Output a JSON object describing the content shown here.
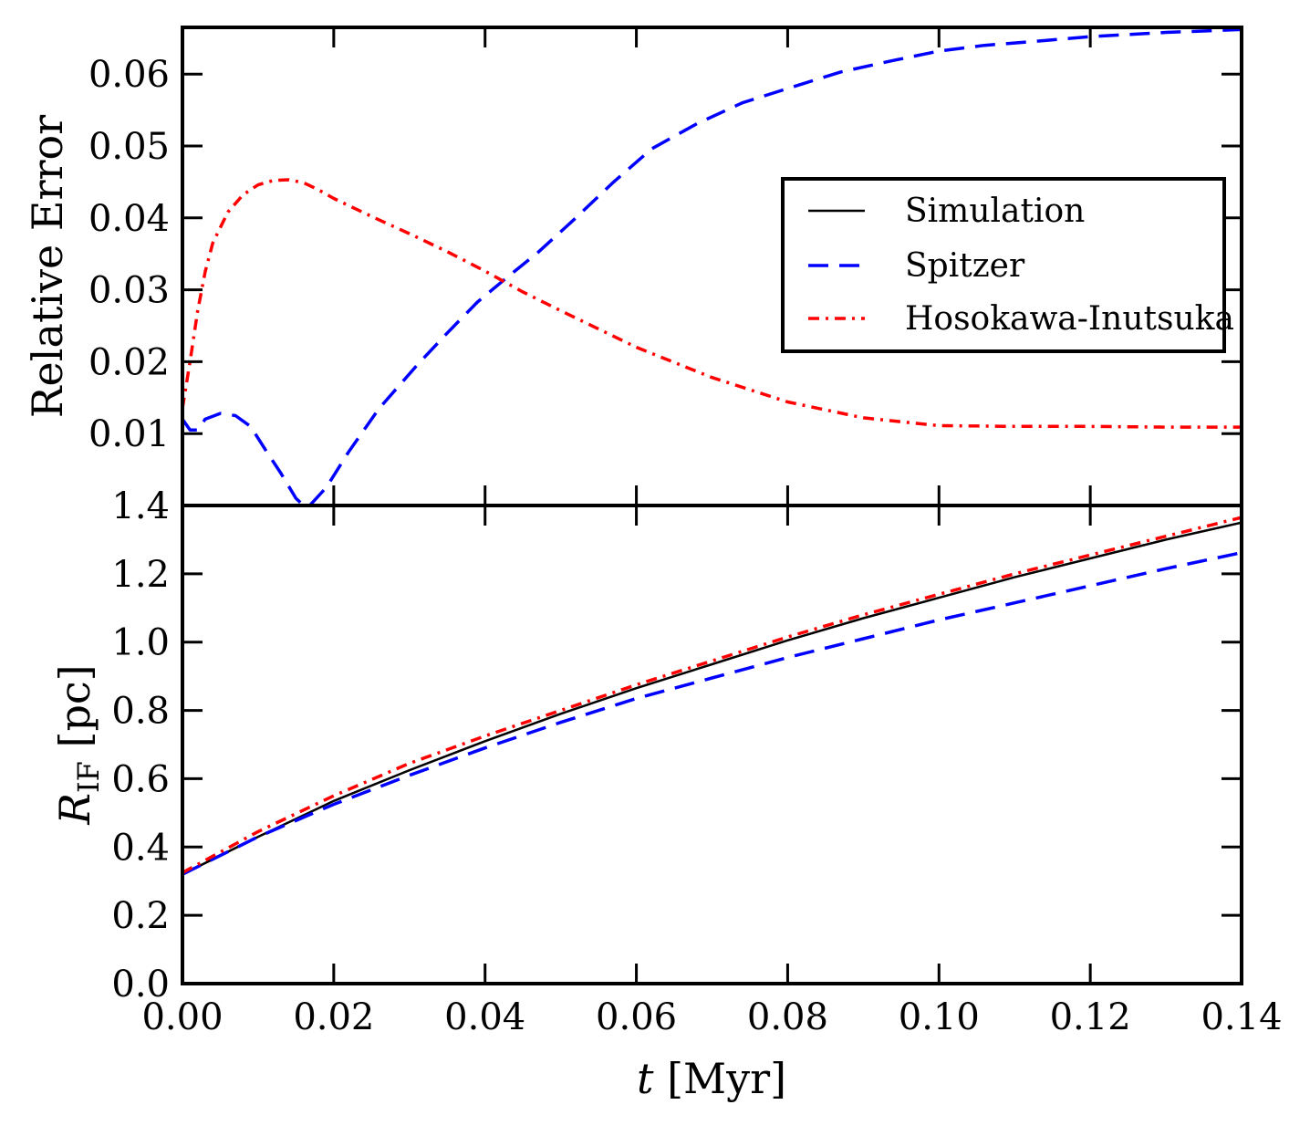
{
  "chart_data": [
    {
      "panel": "top",
      "type": "line",
      "xlabel": "",
      "ylabel": "Relative Error",
      "xlim": [
        0.0,
        0.14
      ],
      "ylim": [
        0.0,
        0.0665
      ],
      "yticks": [
        0.01,
        0.02,
        0.03,
        0.04,
        0.05,
        0.06
      ],
      "ytick_labels": [
        "0.01",
        "0.02",
        "0.03",
        "0.04",
        "0.05",
        "0.06"
      ],
      "legend": {
        "location": "center-right",
        "entries": [
          {
            "label": "Simulation",
            "color": "#000000",
            "style": "solid"
          },
          {
            "label": "Spitzer",
            "color": "#0000ff",
            "style": "dashed"
          },
          {
            "label": "Hosokawa-Inutsuka",
            "color": "#ff0000",
            "style": "dashdot"
          }
        ]
      },
      "series": [
        {
          "name": "Spitzer",
          "color": "#0000ff",
          "style": "dashed",
          "x": [
            0.0,
            0.001,
            0.002,
            0.003,
            0.005,
            0.007,
            0.009,
            0.011,
            0.013,
            0.015,
            0.016,
            0.017,
            0.019,
            0.022,
            0.026,
            0.031,
            0.035,
            0.039,
            0.043,
            0.047,
            0.052,
            0.057,
            0.062,
            0.068,
            0.074,
            0.08,
            0.087,
            0.094,
            0.1,
            0.106,
            0.112,
            0.12,
            0.13,
            0.14
          ],
          "y": [
            0.012,
            0.0105,
            0.0105,
            0.012,
            0.0128,
            0.0125,
            0.011,
            0.0077,
            0.0045,
            0.001,
            0.0,
            0.0002,
            0.0025,
            0.0075,
            0.0135,
            0.0195,
            0.024,
            0.0283,
            0.0318,
            0.0352,
            0.04,
            0.045,
            0.0496,
            0.0531,
            0.056,
            0.058,
            0.0603,
            0.0619,
            0.0632,
            0.064,
            0.0645,
            0.0652,
            0.0658,
            0.0662
          ]
        },
        {
          "name": "Hosokawa-Inutsuka",
          "color": "#ff0000",
          "style": "dashdot",
          "x": [
            0.0,
            0.001,
            0.002,
            0.003,
            0.004,
            0.006,
            0.008,
            0.01,
            0.012,
            0.014,
            0.016,
            0.018,
            0.02,
            0.025,
            0.03,
            0.035,
            0.04,
            0.045,
            0.05,
            0.06,
            0.07,
            0.08,
            0.09,
            0.1,
            0.11,
            0.12,
            0.13,
            0.14
          ],
          "y": [
            0.0135,
            0.02,
            0.027,
            0.0325,
            0.0365,
            0.0408,
            0.0432,
            0.0446,
            0.0452,
            0.0453,
            0.0449,
            0.0439,
            0.0427,
            0.0402,
            0.0378,
            0.0353,
            0.0326,
            0.0297,
            0.0271,
            0.022,
            0.0178,
            0.0144,
            0.0122,
            0.0111,
            0.011,
            0.011,
            0.0109,
            0.0109
          ]
        }
      ]
    },
    {
      "panel": "bottom",
      "type": "line",
      "xlabel": "t [Myr]",
      "ylabel": "R_IF [pc]",
      "xlim": [
        0.0,
        0.14
      ],
      "ylim": [
        0.0,
        1.4
      ],
      "xticks": [
        0.0,
        0.02,
        0.04,
        0.06,
        0.08,
        0.1,
        0.12,
        0.14
      ],
      "xtick_labels": [
        "0.00",
        "0.02",
        "0.04",
        "0.06",
        "0.08",
        "0.10",
        "0.12",
        "0.14"
      ],
      "yticks": [
        0.0,
        0.2,
        0.4,
        0.6,
        0.8,
        1.0,
        1.2,
        1.4
      ],
      "ytick_labels": [
        "0.0",
        "0.2",
        "0.4",
        "0.6",
        "0.8",
        "1.0",
        "1.2",
        "1.4"
      ],
      "series": [
        {
          "name": "Simulation",
          "color": "#000000",
          "style": "solid",
          "x": [
            0.0,
            0.01,
            0.02,
            0.03,
            0.04,
            0.05,
            0.06,
            0.07,
            0.08,
            0.09,
            0.1,
            0.11,
            0.12,
            0.13,
            0.14
          ],
          "y": [
            0.32,
            0.43,
            0.535,
            0.625,
            0.71,
            0.79,
            0.865,
            0.935,
            1.005,
            1.07,
            1.13,
            1.19,
            1.245,
            1.3,
            1.35
          ]
        },
        {
          "name": "Spitzer",
          "color": "#0000ff",
          "style": "dashed",
          "x": [
            0.0,
            0.01,
            0.02,
            0.03,
            0.04,
            0.05,
            0.06,
            0.07,
            0.08,
            0.09,
            0.1,
            0.11,
            0.12,
            0.13,
            0.14
          ],
          "y": [
            0.32,
            0.43,
            0.525,
            0.61,
            0.69,
            0.765,
            0.835,
            0.895,
            0.955,
            1.01,
            1.065,
            1.115,
            1.165,
            1.215,
            1.262
          ]
        },
        {
          "name": "Hosokawa-Inutsuka",
          "color": "#ff0000",
          "style": "dashdot",
          "x": [
            0.0,
            0.01,
            0.02,
            0.03,
            0.04,
            0.05,
            0.06,
            0.07,
            0.08,
            0.09,
            0.1,
            0.11,
            0.12,
            0.13,
            0.14
          ],
          "y": [
            0.325,
            0.445,
            0.55,
            0.645,
            0.725,
            0.8,
            0.875,
            0.945,
            1.015,
            1.08,
            1.14,
            1.2,
            1.255,
            1.31,
            1.365
          ]
        }
      ]
    }
  ],
  "labels": {
    "top_ylabel": "Relative Error",
    "bottom_ylabel_main": "R",
    "bottom_ylabel_sub": "IF",
    "bottom_ylabel_unit": " [pc]",
    "xlabel_var": "t",
    "xlabel_unit": " [Myr]"
  }
}
